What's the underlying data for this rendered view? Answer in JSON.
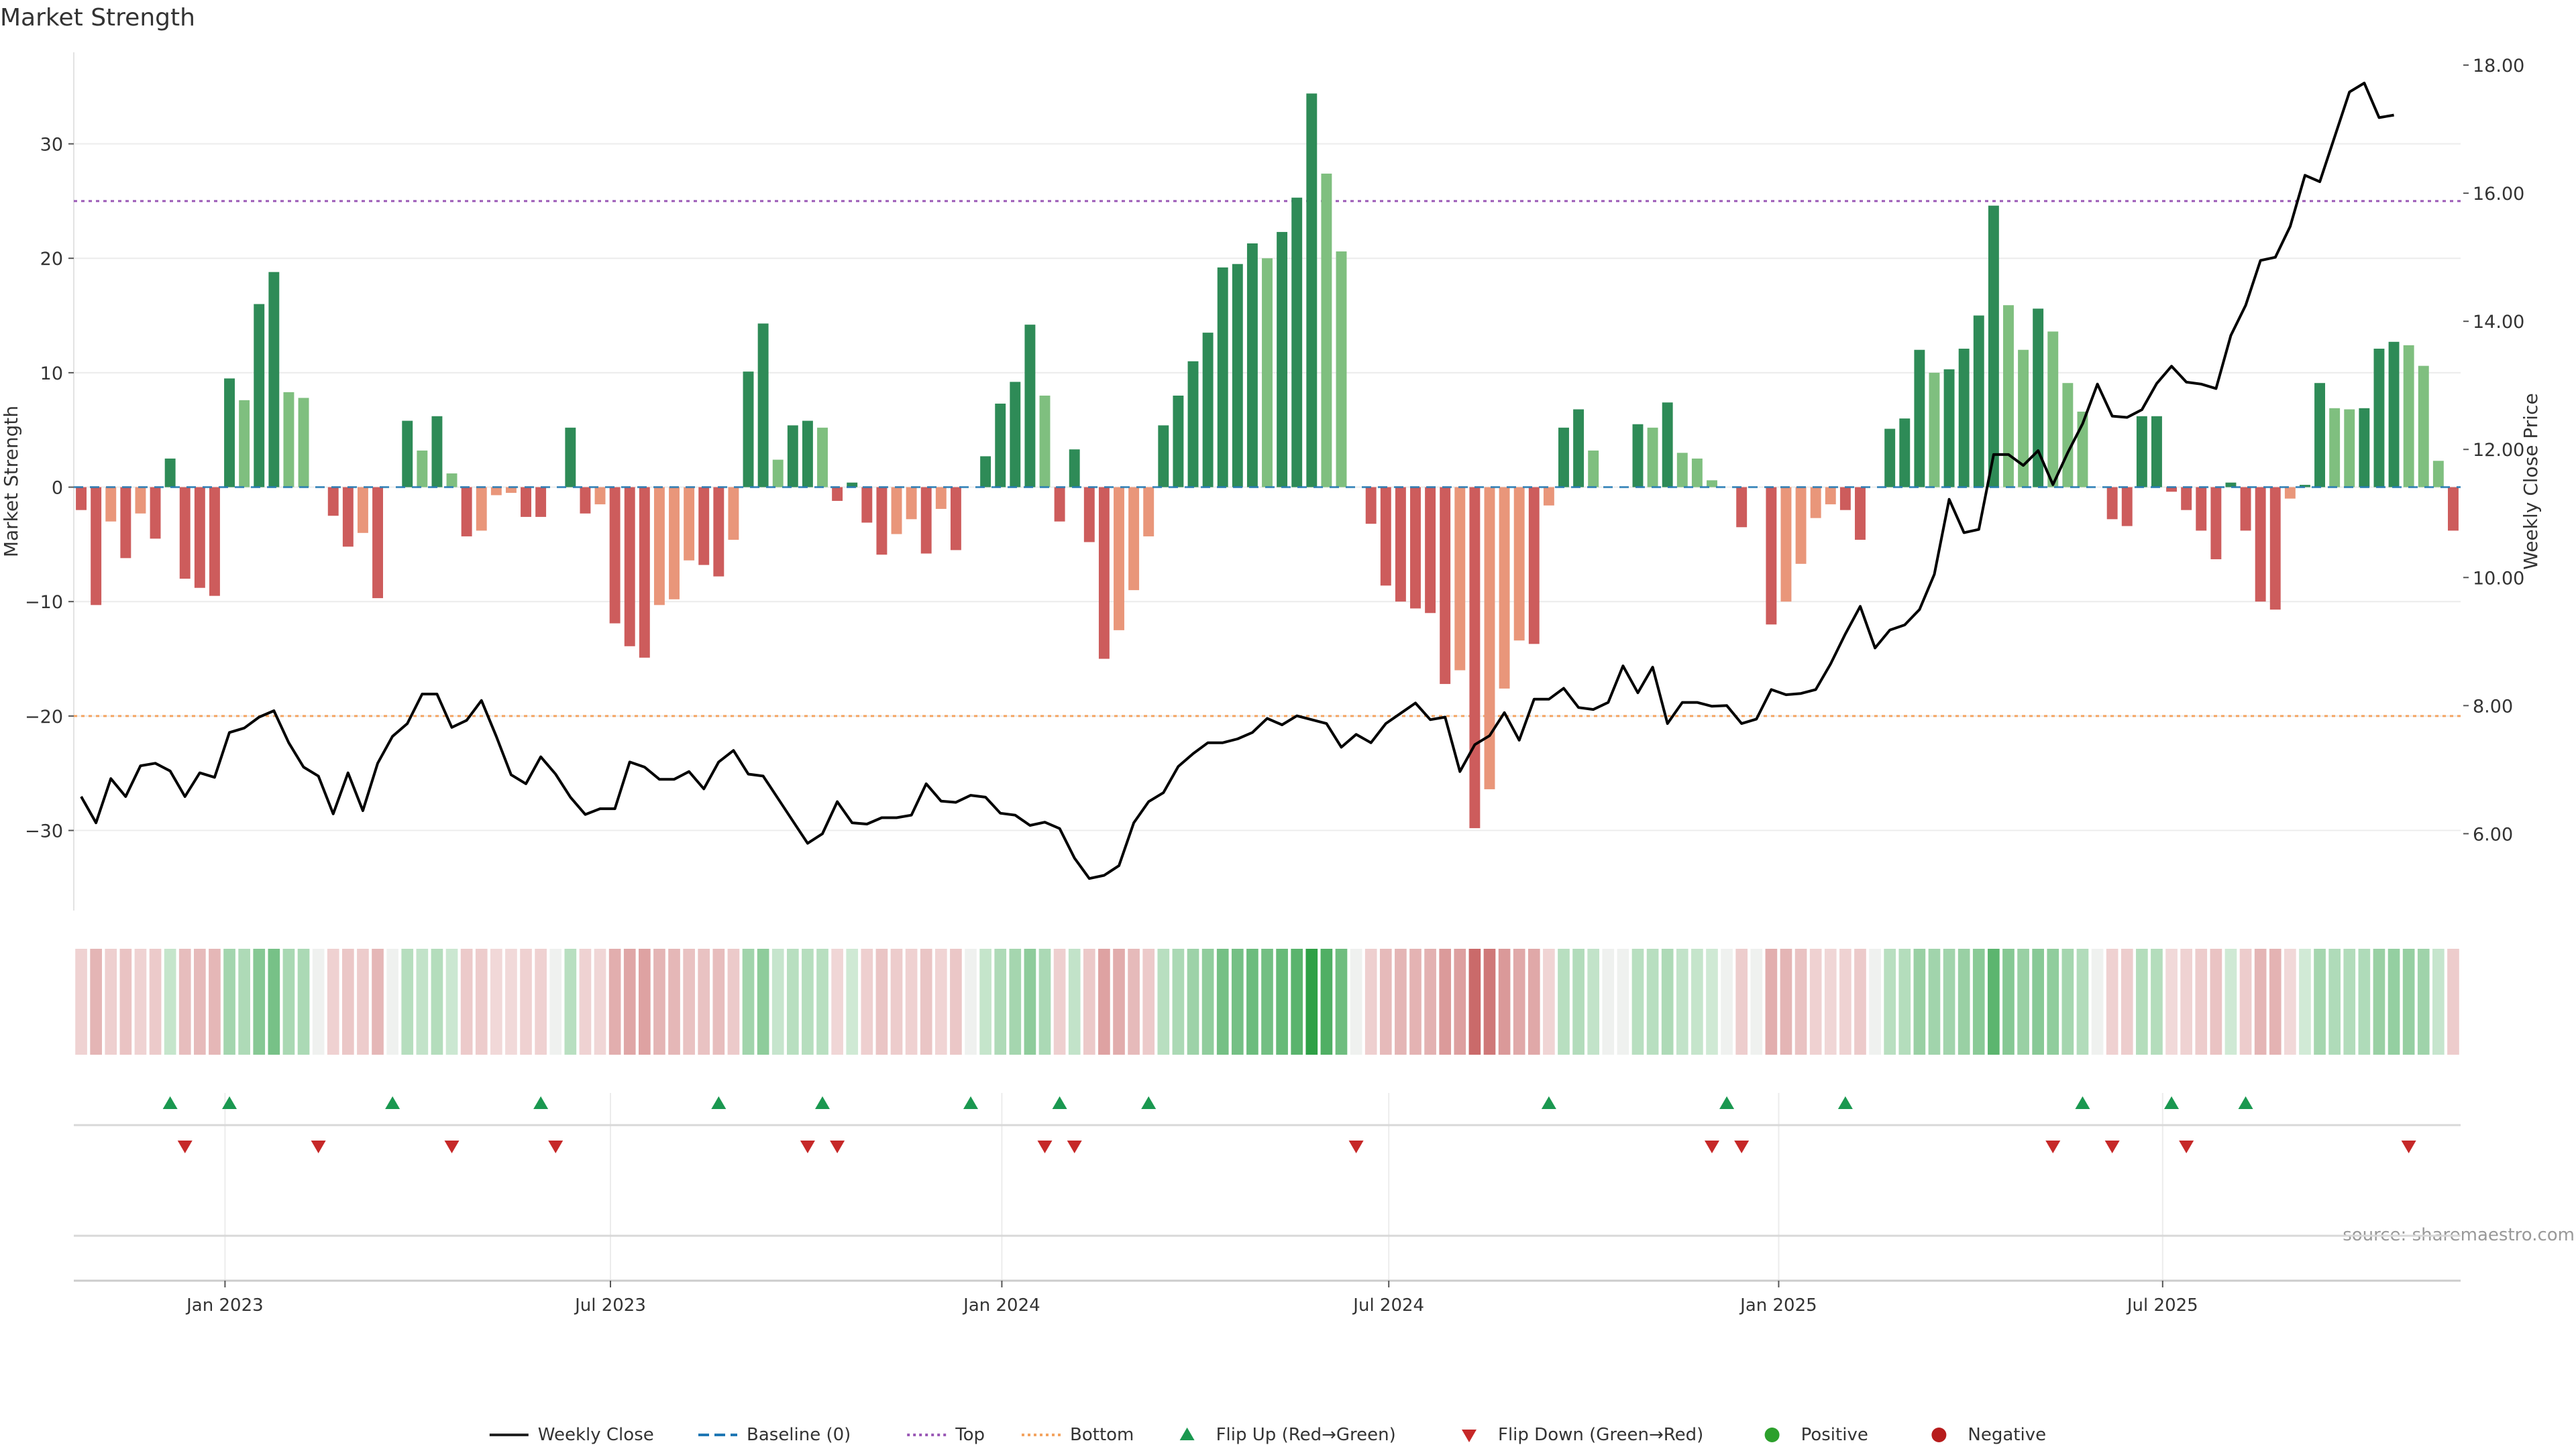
{
  "chart_data": {
    "type": "bar",
    "title": "Market Strength",
    "ylabel": "Market Strength",
    "y2label": "Weekly Close Price",
    "source": "source: sharemaestro.com",
    "ylim": [
      -37,
      38
    ],
    "y2lim": [
      4.8,
      18.2
    ],
    "y_ticks": [
      "30",
      "20",
      "10",
      "0",
      "−10",
      "−20",
      "−30"
    ],
    "y_tick_values": [
      30,
      20,
      10,
      0,
      -10,
      -20,
      -30
    ],
    "y2_ticks": [
      "18.00",
      "16.00",
      "14.00",
      "12.00",
      "10.00",
      "8.00",
      "6.00"
    ],
    "y2_tick_values": [
      18,
      16,
      14,
      12,
      10,
      8,
      6
    ],
    "x_ticks": [
      "Jan 2023",
      "Jul 2023",
      "Jan 2024",
      "Jul 2024",
      "Jan 2025",
      "Jul 2025"
    ],
    "x_tick_weeks": [
      10.2,
      36.2,
      62.6,
      88.7,
      115.0,
      140.9
    ],
    "top_threshold": 25,
    "bottom_threshold": -20,
    "grid": true,
    "legend_position": "bottom-center",
    "colors": {
      "strong_green": "#2e8b57",
      "light_green": "#7fbf7f",
      "strong_red": "#cd5c5c",
      "light_red": "#e9967a",
      "baseline": "#1f77b4",
      "top_line": "#9b59b6",
      "bottom_line": "#f4a460",
      "price_line": "#000000",
      "flip_up": "#1a9850",
      "flip_down": "#c62828",
      "positive": "#2ca02c",
      "negative": "#b71c1c"
    },
    "series": [
      {
        "name": "Market Strength",
        "values": [
          -2,
          -10.3,
          -3,
          -6.2,
          -2.3,
          -4.5,
          2.5,
          -8,
          -8.8,
          -9.5,
          9.5,
          7.6,
          16,
          18.8,
          8.3,
          7.8,
          0,
          -2.5,
          -5.2,
          -4,
          -9.7,
          0,
          5.8,
          3.2,
          6.2,
          1.2,
          -4.3,
          -3.8,
          -0.7,
          -0.5,
          -2.6,
          -2.6,
          0,
          5.2,
          -2.3,
          -1.5,
          -11.9,
          -13.9,
          -14.9,
          -10.3,
          -9.8,
          -6.4,
          -6.8,
          -7.8,
          -4.6,
          10.1,
          14.3,
          2.4,
          5.4,
          5.8,
          5.2,
          -1.2,
          0.4,
          -3.1,
          -5.9,
          -4.1,
          -2.8,
          -5.8,
          -1.9,
          -5.5,
          0,
          2.7,
          7.3,
          9.2,
          14.2,
          8,
          -3,
          3.3,
          -4.8,
          -15,
          -12.5,
          -9,
          -4.3,
          5.4,
          8,
          11,
          13.5,
          19.2,
          19.5,
          21.3,
          20,
          22.3,
          25.3,
          34.4,
          27.4,
          20.6,
          0,
          -3.2,
          -8.6,
          -10,
          -10.6,
          -11,
          -17.2,
          -16,
          -29.8,
          -26.4,
          -17.6,
          -13.4,
          -13.7,
          -1.6,
          5.2,
          6.8,
          3.2,
          0,
          0,
          5.5,
          5.2,
          7.4,
          3,
          2.5,
          0.6,
          0,
          -3.5,
          0,
          -12,
          -10,
          -6.7,
          -2.7,
          -1.5,
          -2,
          -4.6,
          0,
          5.1,
          6,
          12,
          10,
          10.3,
          12.1,
          15,
          24.6,
          15.9,
          12,
          15.6,
          13.6,
          9.1,
          6.6,
          0,
          -2.8,
          -3.4,
          6.2,
          6.2,
          -0.4,
          -2,
          -3.8,
          -6.3,
          0.4,
          -3.8,
          -10,
          -10.7,
          -1,
          0.2,
          9.1,
          6.9,
          6.8,
          6.9,
          12.1,
          12.7,
          12.4,
          10.6,
          2.3,
          -3.8
        ]
      },
      {
        "name": "Weekly Close",
        "values": [
          6.58,
          6.17,
          6.86,
          6.58,
          7.06,
          7.1,
          6.98,
          6.58,
          6.95,
          6.88,
          7.58,
          7.65,
          7.82,
          7.92,
          7.42,
          7.04,
          6.9,
          6.31,
          6.95,
          6.36,
          7.1,
          7.52,
          7.72,
          8.18,
          8.18,
          7.66,
          7.77,
          8.08,
          7.52,
          6.92,
          6.78,
          7.2,
          6.93,
          6.57,
          6.3,
          6.39,
          6.39,
          7.12,
          7.04,
          6.85,
          6.85,
          6.97,
          6.7,
          7.12,
          7.3,
          6.93,
          6.9,
          6.55,
          6.2,
          5.85,
          6,
          6.5,
          6.17,
          6.15,
          6.25,
          6.25,
          6.29,
          6.78,
          6.51,
          6.49,
          6.6,
          6.57,
          6.32,
          6.29,
          6.13,
          6.18,
          6.08,
          5.62,
          5.3,
          5.35,
          5.5,
          6.17,
          6.5,
          6.64,
          7.05,
          7.25,
          7.42,
          7.42,
          7.48,
          7.58,
          7.8,
          7.7,
          7.84,
          7.78,
          7.72,
          7.35,
          7.55,
          7.42,
          7.72,
          7.88,
          8.04,
          7.78,
          7.82,
          6.97,
          7.39,
          7.53,
          7.89,
          7.46,
          8.1,
          8.1,
          8.27,
          7.97,
          7.94,
          8.05,
          8.62,
          8.2,
          8.6,
          7.72,
          8.05,
          8.05,
          7.99,
          8.0,
          7.72,
          7.79,
          8.25,
          8.17,
          8.19,
          8.25,
          8.65,
          9.12,
          9.55,
          8.9,
          9.18,
          9.26,
          9.5,
          10.05,
          11.22,
          10.7,
          10.75,
          11.92,
          11.92,
          11.75,
          11.98,
          11.45,
          11.95,
          12.4,
          13.02,
          12.52,
          12.5,
          12.62,
          13.03,
          13.3,
          13.05,
          13.02,
          12.95,
          13.78,
          14.25,
          14.95,
          15.0,
          15.48,
          16.28,
          16.18,
          16.88,
          17.58,
          17.72,
          17.18,
          17.22
        ],
        "axis": "right"
      }
    ],
    "flip_up_weeks": [
      6,
      10,
      21,
      31,
      43,
      50,
      60,
      66,
      72,
      99,
      111,
      119,
      135,
      141,
      146
    ],
    "flip_down_weeks": [
      7,
      16,
      25,
      32,
      49,
      51,
      65,
      67,
      86,
      110,
      112,
      133,
      137,
      142,
      157
    ],
    "legend": [
      {
        "label": "Weekly Close",
        "kind": "line-solid",
        "color": "#222222"
      },
      {
        "label": "Baseline (0)",
        "kind": "line-dash",
        "color": "#1f77b4"
      },
      {
        "label": "Top",
        "kind": "line-dot",
        "color": "#9b59b6"
      },
      {
        "label": "Bottom",
        "kind": "line-dot",
        "color": "#f4a460"
      },
      {
        "label": "Flip Up (Red→Green)",
        "kind": "tri-up",
        "color": "#1a9850"
      },
      {
        "label": "Flip Down (Green→Red)",
        "kind": "tri-down",
        "color": "#c62828"
      },
      {
        "label": "Positive",
        "kind": "dot",
        "color": "#2ca02c"
      },
      {
        "label": "Negative",
        "kind": "dot",
        "color": "#b71c1c"
      }
    ]
  }
}
